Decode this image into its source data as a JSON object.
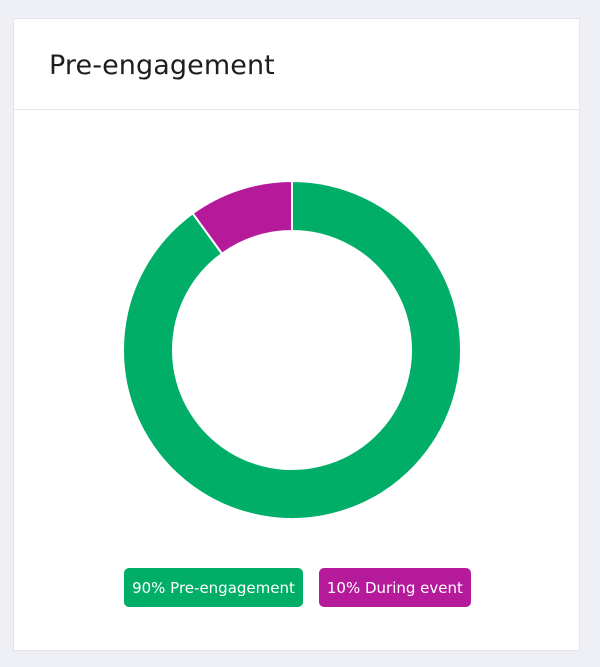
{
  "card": {
    "title": "Pre-engagement"
  },
  "chart_data": {
    "type": "pie",
    "variant": "donut",
    "title": "Pre-engagement",
    "slices": [
      {
        "label": "Pre-engagement",
        "value": 90,
        "color": "#00ae68"
      },
      {
        "label": "During event",
        "value": 10,
        "color": "#b51a9b"
      }
    ],
    "legend_placement": "bottom-center",
    "legend": [
      {
        "text": "90% Pre-engagement",
        "color": "#00ae68"
      },
      {
        "text": "10% During event",
        "color": "#b51a9b"
      }
    ]
  }
}
